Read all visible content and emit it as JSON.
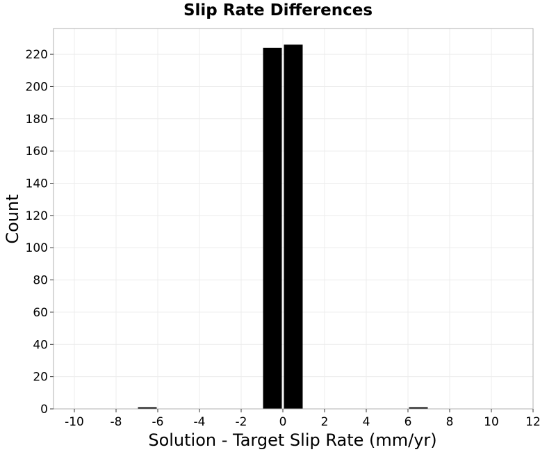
{
  "chart_data": {
    "type": "bar",
    "title": "Slip Rate Differences",
    "xlabel": "Solution - Target Slip Rate (mm/yr)",
    "ylabel": "Count",
    "xlim": [
      -11,
      12
    ],
    "ylim": [
      0,
      236
    ],
    "xticks": [
      -10,
      -8,
      -6,
      -4,
      -2,
      0,
      2,
      4,
      6,
      8,
      10,
      12
    ],
    "yticks": [
      0,
      20,
      40,
      60,
      80,
      100,
      120,
      140,
      160,
      180,
      200,
      220
    ],
    "grid": true,
    "bar_color": "#000000",
    "bins": [
      {
        "x0": -7,
        "x1": -6,
        "count": 1
      },
      {
        "x0": -1,
        "x1": 0,
        "count": 224
      },
      {
        "x0": 0,
        "x1": 1,
        "count": 226
      },
      {
        "x0": 6,
        "x1": 7,
        "count": 1
      }
    ]
  }
}
